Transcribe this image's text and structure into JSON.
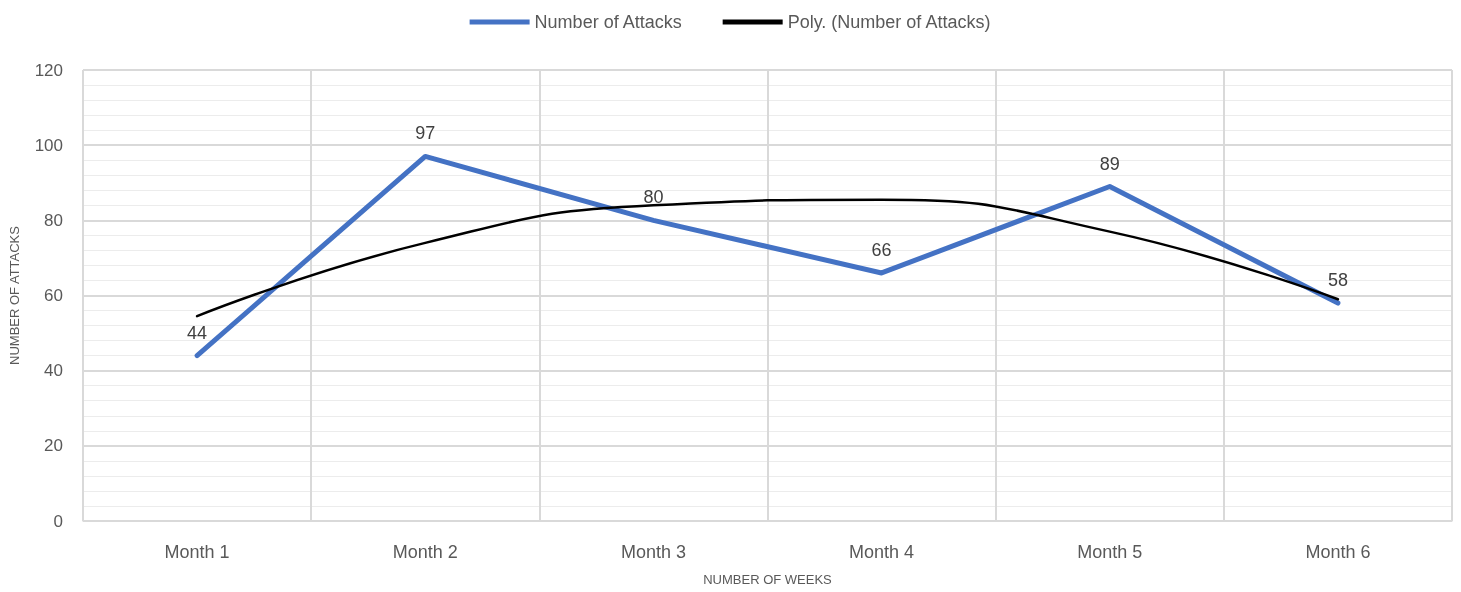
{
  "chart_data": {
    "type": "line",
    "xlabel": "NUMBER OF WEEKS",
    "ylabel": "NUMBER OF ATTACKS",
    "categories": [
      "Month 1",
      "Month 2",
      "Month 3",
      "Month 4",
      "Month 5",
      "Month 6"
    ],
    "series": [
      {
        "name": "Number of Attacks",
        "color": "#4472c4",
        "values": [
          44,
          97,
          80,
          66,
          89,
          58
        ],
        "value_labels": [
          "44",
          "97",
          "80",
          "66",
          "89",
          "58"
        ]
      },
      {
        "name": "Poly. (Number of Attacks)",
        "color": "#000000",
        "values": [
          54.5,
          74,
          84,
          85.5,
          77,
          59
        ]
      }
    ],
    "ylim": [
      0,
      120
    ],
    "yticks": [
      0,
      20,
      40,
      60,
      80,
      100,
      120
    ],
    "grid": true,
    "legend": "top",
    "marker": "none",
    "line_style": "solid"
  }
}
